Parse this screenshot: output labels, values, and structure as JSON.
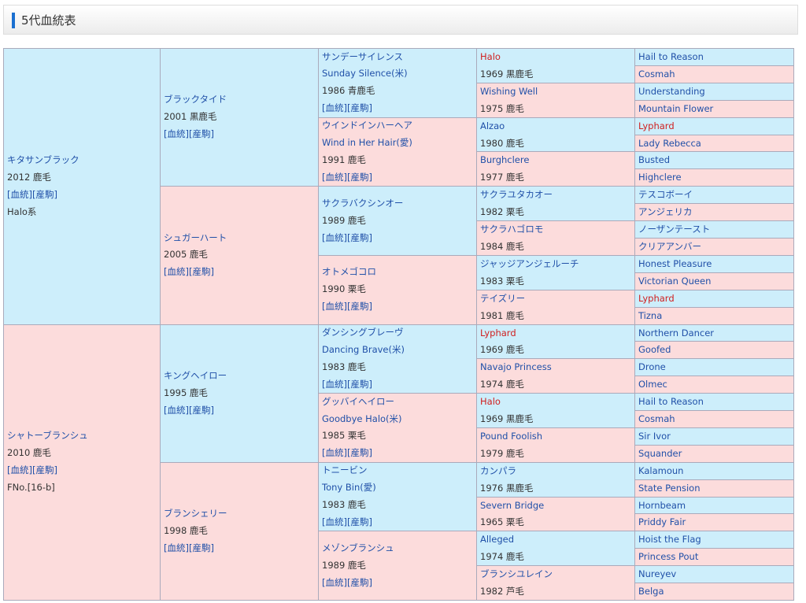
{
  "header": {
    "title": "5代血統表"
  },
  "pedigree": {
    "gen1": [
      {
        "name": "キタサンブラック",
        "info": "2012 鹿毛",
        "links": [
          "[血統]",
          "[産駒]"
        ],
        "note": "Halo系"
      },
      {
        "name": "シャトーブランシュ",
        "info": "2010 鹿毛",
        "links": [
          "[血統]",
          "[産駒]"
        ],
        "note": "FNo.[16-b]"
      }
    ],
    "gen2": [
      {
        "name": "ブラックタイド",
        "info": "2001 黒鹿毛",
        "links": [
          "[血統]",
          "[産駒]"
        ]
      },
      {
        "name": "シュガーハート",
        "info": "2005 鹿毛",
        "links": [
          "[血統]",
          "[産駒]"
        ]
      },
      {
        "name": "キングヘイロー",
        "info": "1995 鹿毛",
        "links": [
          "[血統]",
          "[産駒]"
        ]
      },
      {
        "name": "ブランシェリー",
        "info": "1998 鹿毛",
        "links": [
          "[血統]",
          "[産駒]"
        ]
      }
    ],
    "gen3": [
      {
        "name": "サンデーサイレンス",
        "name_en": "Sunday Silence(米)",
        "info": "1986 青鹿毛",
        "links": [
          "[血統]",
          "[産駒]"
        ]
      },
      {
        "name": "ウインドインハーヘア",
        "name_en": "Wind in Her Hair(愛)",
        "info": "1991 鹿毛",
        "links": [
          "[血統]",
          "[産駒]"
        ]
      },
      {
        "name": "サクラバクシンオー",
        "info": "1989 鹿毛",
        "links": [
          "[血統]",
          "[産駒]"
        ]
      },
      {
        "name": "オトメゴコロ",
        "info": "1990 栗毛",
        "links": [
          "[血統]",
          "[産駒]"
        ]
      },
      {
        "name": "ダンシングブレーヴ",
        "name_en": "Dancing Brave(米)",
        "info": "1983 鹿毛",
        "links": [
          "[血統]",
          "[産駒]"
        ]
      },
      {
        "name": "グッバイヘイロー",
        "name_en": "Goodbye Halo(米)",
        "info": "1985 栗毛",
        "links": [
          "[血統]",
          "[産駒]"
        ]
      },
      {
        "name": "トニービン",
        "name_en": "Tony Bin(愛)",
        "info": "1983 鹿毛",
        "links": [
          "[血統]",
          "[産駒]"
        ]
      },
      {
        "name": "メゾンブランシュ",
        "info": "1989 鹿毛",
        "links": [
          "[血統]",
          "[産駒]"
        ]
      }
    ],
    "gen4": [
      {
        "name": "Halo",
        "info": "1969 黒鹿毛",
        "highlight": true
      },
      {
        "name": "Wishing Well",
        "info": "1975 鹿毛"
      },
      {
        "name": "Alzao",
        "info": "1980 鹿毛"
      },
      {
        "name": "Burghclere",
        "info": "1977 鹿毛"
      },
      {
        "name": "サクラユタカオー",
        "info": "1982 栗毛"
      },
      {
        "name": "サクラハゴロモ",
        "info": "1984 鹿毛"
      },
      {
        "name": "ジャッジアンジェルーチ",
        "info": "1983 栗毛"
      },
      {
        "name": "テイズリー",
        "info": "1981 鹿毛"
      },
      {
        "name": "Lyphard",
        "info": "1969 鹿毛",
        "highlight": true
      },
      {
        "name": "Navajo Princess",
        "info": "1974 鹿毛"
      },
      {
        "name": "Halo",
        "info": "1969 黒鹿毛",
        "highlight": true
      },
      {
        "name": "Pound Foolish",
        "info": "1979 鹿毛"
      },
      {
        "name": "カンパラ",
        "info": "1976 黒鹿毛"
      },
      {
        "name": "Severn Bridge",
        "info": "1965 栗毛"
      },
      {
        "name": "Alleged",
        "info": "1974 鹿毛"
      },
      {
        "name": "ブランシユレイン",
        "info": "1982 芦毛"
      }
    ],
    "gen5": [
      {
        "name": "Hail to Reason"
      },
      {
        "name": "Cosmah"
      },
      {
        "name": "Understanding"
      },
      {
        "name": "Mountain Flower"
      },
      {
        "name": "Lyphard",
        "highlight": true
      },
      {
        "name": "Lady Rebecca"
      },
      {
        "name": "Busted"
      },
      {
        "name": "Highclere"
      },
      {
        "name": "テスコボーイ"
      },
      {
        "name": "アンジェリカ"
      },
      {
        "name": "ノーザンテースト"
      },
      {
        "name": "クリアアンバー"
      },
      {
        "name": "Honest Pleasure"
      },
      {
        "name": "Victorian Queen"
      },
      {
        "name": "Lyphard",
        "highlight": true
      },
      {
        "name": "Tizna"
      },
      {
        "name": "Northern Dancer"
      },
      {
        "name": "Goofed"
      },
      {
        "name": "Drone"
      },
      {
        "name": "Olmec"
      },
      {
        "name": "Hail to Reason"
      },
      {
        "name": "Cosmah"
      },
      {
        "name": "Sir Ivor"
      },
      {
        "name": "Squander"
      },
      {
        "name": "Kalamoun"
      },
      {
        "name": "State Pension"
      },
      {
        "name": "Hornbeam"
      },
      {
        "name": "Priddy Fair"
      },
      {
        "name": "Hoist the Flag"
      },
      {
        "name": "Princess Pout"
      },
      {
        "name": "Nureyev"
      },
      {
        "name": "Belga"
      }
    ]
  }
}
